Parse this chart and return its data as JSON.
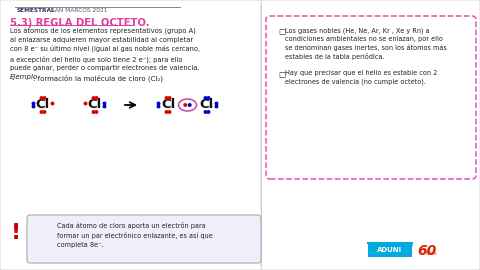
{
  "bg_color": "#f0f0eb",
  "header_bold": "SEMESTRAL",
  "header_normal": " SAN MARCOS 2021",
  "title": "5.3) REGLA DEL OCTETO.",
  "title_color": "#e0409a",
  "body_text": "Los átomos de los elementos representativos (grupo A)\nal enlazarse adquieren mayor estabilidad al completar\ncon 8 e⁻ su último nivel (igual al gas noble más cercano,\na excepción del helio que solo tiene 2 e⁻); para ello\npuede ganar, perder o compartir electrones de valencia.",
  "example_label": "Ejemplo",
  "example_text": ": formación la molécula de cloro (Cl₂)",
  "note_text": "Cada átomo de cloro aporta un electrón para\nformar un par electrónico enlazante, es así que\ncompleta 8e⁻.",
  "right_bullet1a": "Los gases nobles (He, Ne, Ar, Kr , Xe y Rn) a",
  "right_bullet1b": "condiciones ambientales no se enlazan,",
  "right_bullet1c": " por ello\nse denominan gases inertes, son los átomos más\nestables de la tabla periódica.",
  "right_bullet2a": "Hay que precisar que el ",
  "right_bullet2b": "helio es estable con 2\nelectrones de valencia",
  "right_bullet2c": " (no cumple octeto).",
  "dot_red": "#dd0000",
  "dot_blue": "#0000cc",
  "magenta_color": "#cc44aa",
  "box_border_color": "#dd55bb",
  "red_color": "#cc0000",
  "aduni_blue": "#00aadd",
  "aduni_red": "#dd2200",
  "panel_line_color": "#888888",
  "divider_color": "#bbbbbb"
}
